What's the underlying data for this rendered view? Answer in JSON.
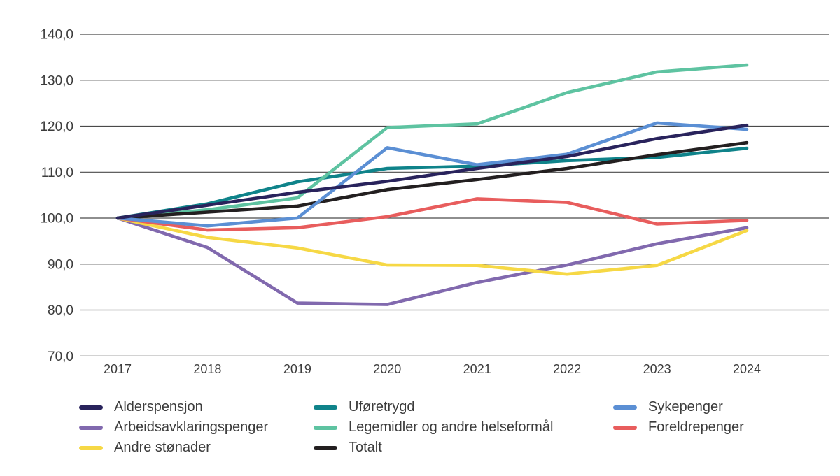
{
  "chart_data": {
    "type": "line",
    "title": "",
    "xlabel": "",
    "ylabel": "",
    "categories": [
      "2017",
      "2018",
      "2019",
      "2020",
      "2021",
      "2022",
      "2023",
      "2024"
    ],
    "ylim": [
      70,
      140
    ],
    "y_tick_step": 10,
    "y_tick_labels": [
      "70,0",
      "80,0",
      "90,0",
      "100,0",
      "110,0",
      "120,0",
      "130,0",
      "140,0"
    ],
    "decimal_separator": ",",
    "grid": true,
    "legend_position": "bottom",
    "series": [
      {
        "name": "Alderspensjon",
        "color": "#29235c",
        "values": [
          100,
          102.8,
          105.6,
          108.0,
          110.8,
          113.4,
          117.3,
          120.2
        ]
      },
      {
        "name": "Arbeidsavklaringspenger",
        "color": "#8169ae",
        "values": [
          100,
          93.6,
          81.5,
          81.2,
          86.0,
          89.8,
          94.4,
          97.9
        ]
      },
      {
        "name": "Andre stønader",
        "color": "#f6d845",
        "values": [
          100,
          95.8,
          93.5,
          89.8,
          89.7,
          87.8,
          89.7,
          97.3
        ]
      },
      {
        "name": "Uføretrygd",
        "color": "#0f838a",
        "values": [
          100,
          103.1,
          107.9,
          110.8,
          111.3,
          112.5,
          113.2,
          115.2
        ]
      },
      {
        "name": "Legemidler og andre helseformål",
        "color": "#5ec3a1",
        "values": [
          100,
          101.8,
          104.4,
          119.7,
          120.5,
          127.3,
          131.8,
          133.3
        ]
      },
      {
        "name": "Totalt",
        "color": "#231f20",
        "values": [
          100,
          101.3,
          102.6,
          106.2,
          108.4,
          110.8,
          113.8,
          116.4
        ]
      },
      {
        "name": "Sykepenger",
        "color": "#5b8fd4",
        "values": [
          100,
          98.3,
          100.0,
          115.3,
          111.6,
          113.9,
          120.7,
          119.3
        ]
      },
      {
        "name": "Foreldrepenger",
        "color": "#e85d5d",
        "values": [
          100,
          97.4,
          97.9,
          100.3,
          104.2,
          103.4,
          98.7,
          99.5
        ]
      }
    ],
    "draw_order": [
      "Arbeidsavklaringspenger",
      "Andre stønader",
      "Foreldrepenger",
      "Uføretrygd",
      "Legemidler og andre helseformål",
      "Totalt",
      "Sykepenger",
      "Alderspensjon"
    ]
  }
}
